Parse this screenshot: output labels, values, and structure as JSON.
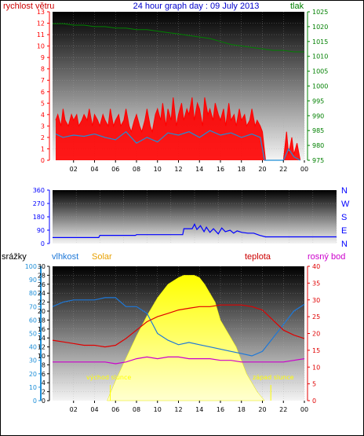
{
  "colors": {
    "wind": "#ff0000",
    "gust_bg": "#ff0000",
    "wind_avg": "#1e8fd8",
    "pressure": "#008000",
    "direction": "#0000ff",
    "humidity": "#1e78d8",
    "temperature": "#e00000",
    "dewpoint": "#cc00cc",
    "solar": "#ffff00",
    "rain": "#1e8fd8",
    "header_blue": "#0000cc",
    "solar_label": "#e8a000",
    "temp_label": "#cc0000",
    "dew_label": "#cc00cc",
    "sun_text": "#ffff00"
  },
  "header": {
    "left_label": "rychlost větru",
    "title": "24 hour graph day : 09 July 2013",
    "right_label": "tlak"
  },
  "bottom_header": {
    "rain_label": "srážky",
    "humidity_label": "vlhkost",
    "solar_label": "Solar",
    "temp_label": "teplota",
    "dew_label": "rosný bod"
  },
  "sun_labels": {
    "sunrise": "východ slunce",
    "sunset": "západ slunce"
  },
  "chart_data": [
    {
      "type": "line",
      "title": "24 hour graph day : 09 July 2013",
      "x_ticks": [
        "02",
        "04",
        "06",
        "08",
        "10",
        "12",
        "14",
        "16",
        "18",
        "20",
        "22",
        "00"
      ],
      "x_range_hours": [
        0,
        24
      ],
      "y_left_label": "rychlost větru",
      "y_left_ticks": [
        "0",
        "1",
        "2",
        "3",
        "4",
        "5",
        "6",
        "7",
        "8",
        "9",
        "10",
        "11",
        "12",
        "13"
      ],
      "y_left_range": [
        0,
        13
      ],
      "y_right_label": "tlak",
      "y_right_ticks": [
        "975",
        "980",
        "985",
        "990",
        "995",
        "1000",
        "1005",
        "1010",
        "1015",
        "1020",
        "1025"
      ],
      "y_right_range": [
        975,
        1025
      ],
      "series": [
        {
          "role": "gust",
          "x": [
            0.3,
            0.5,
            0.8,
            1.0,
            1.2,
            1.5,
            1.8,
            2.0,
            2.3,
            2.5,
            2.8,
            3.0,
            3.3,
            3.5,
            3.8,
            4.0,
            4.3,
            4.5,
            4.8,
            5.0,
            5.3,
            5.5,
            5.8,
            6.0,
            6.3,
            6.5,
            6.8,
            7.0,
            7.3,
            7.5,
            7.8,
            8.0,
            8.3,
            8.5,
            8.8,
            9.0,
            9.3,
            9.5,
            9.8,
            10.0,
            10.3,
            10.5,
            10.8,
            11.0,
            11.3,
            11.5,
            11.8,
            12.0,
            12.3,
            12.5,
            12.8,
            13.0,
            13.3,
            13.5,
            13.8,
            14.0,
            14.3,
            14.5,
            14.8,
            15.0,
            15.3,
            15.5,
            15.8,
            16.0,
            16.3,
            16.5,
            16.8,
            17.0,
            17.3,
            17.5,
            17.8,
            18.0,
            18.3,
            18.5,
            18.8,
            19.0,
            19.3,
            19.5,
            19.8,
            20.0,
            20.3,
            22.0,
            22.3,
            22.5,
            22.8,
            23.0,
            23.3,
            23.6
          ],
          "y": [
            3.5,
            4.0,
            3.0,
            4.5,
            3.5,
            3.0,
            4.0,
            3.5,
            4.0,
            3.0,
            3.5,
            4.0,
            3.5,
            4.5,
            3.0,
            4.0,
            3.5,
            3.0,
            4.0,
            3.5,
            3.0,
            4.5,
            3.0,
            3.5,
            4.0,
            3.0,
            3.5,
            4.5,
            3.0,
            2.5,
            3.5,
            4.0,
            3.0,
            2.5,
            3.5,
            4.5,
            3.0,
            2.5,
            4.0,
            4.5,
            3.5,
            5.0,
            3.0,
            4.5,
            3.5,
            5.5,
            3.0,
            4.0,
            5.0,
            3.5,
            4.5,
            4.0,
            5.5,
            3.5,
            5.0,
            4.5,
            3.0,
            5.5,
            4.0,
            4.5,
            3.5,
            5.0,
            4.0,
            3.5,
            4.5,
            3.0,
            5.0,
            3.5,
            4.0,
            3.0,
            4.5,
            3.5,
            4.0,
            3.0,
            3.5,
            4.5,
            3.0,
            3.5,
            3.0,
            2.5,
            0.0,
            0.0,
            2.5,
            0.5,
            2.0,
            0.5,
            1.5,
            0.0
          ]
        },
        {
          "role": "average",
          "x": [
            0.3,
            1.0,
            2.0,
            3.0,
            4.0,
            5.0,
            6.0,
            7.0,
            8.0,
            9.0,
            10.0,
            11.0,
            12.0,
            13.0,
            14.0,
            15.0,
            16.0,
            17.0,
            18.0,
            19.0,
            19.8,
            20.2,
            22.0,
            22.5,
            23.0,
            23.6
          ],
          "y": [
            2.3,
            2.0,
            2.2,
            2.1,
            2.3,
            2.0,
            1.8,
            2.5,
            1.5,
            2.0,
            1.6,
            2.4,
            2.2,
            2.5,
            2.0,
            2.6,
            2.2,
            2.4,
            2.0,
            2.3,
            2.0,
            0.0,
            0.0,
            1.0,
            0.3,
            0.0
          ]
        },
        {
          "role": "pressure",
          "axis": "right",
          "x": [
            0,
            1,
            2,
            3,
            4,
            5,
            6,
            7,
            8,
            9,
            10,
            11,
            12,
            13,
            14,
            15,
            16,
            17,
            18,
            19,
            20,
            21,
            22,
            23,
            24
          ],
          "y": [
            1021,
            1021,
            1020.5,
            1020.5,
            1020,
            1020,
            1019.5,
            1019.5,
            1019,
            1019,
            1018.5,
            1018,
            1017.5,
            1017,
            1016.5,
            1016,
            1015,
            1014,
            1013.5,
            1013,
            1012.5,
            1012,
            1012,
            1011.5,
            1011.5
          ]
        }
      ]
    },
    {
      "type": "line",
      "x_range_hours": [
        0,
        24
      ],
      "y_left_ticks": [
        "0",
        "90",
        "180",
        "270",
        "360"
      ],
      "y_left_range": [
        0,
        360
      ],
      "y_right_ticks": [
        "N",
        "E",
        "S",
        "W",
        "N"
      ],
      "series": [
        {
          "role": "direction",
          "x": [
            0,
            2,
            3,
            3.9,
            4.0,
            7.0,
            7.1,
            11.0,
            11.1,
            11.8,
            12.0,
            12.2,
            12.5,
            12.8,
            13.0,
            13.3,
            13.6,
            14.0,
            14.3,
            14.6,
            15.0,
            15.3,
            15.6,
            16.0,
            16.5,
            17.0,
            17.5,
            18.0,
            18.5,
            24
          ],
          "y": [
            40,
            40,
            40,
            40,
            55,
            55,
            60,
            60,
            100,
            100,
            130,
            95,
            120,
            80,
            110,
            75,
            100,
            65,
            105,
            80,
            90,
            70,
            85,
            75,
            70,
            70,
            55,
            45,
            45,
            45
          ]
        }
      ]
    },
    {
      "type": "area",
      "x_ticks": [
        "02",
        "04",
        "06",
        "08",
        "10",
        "12",
        "14",
        "16",
        "18",
        "20",
        "22",
        "00"
      ],
      "x_range_hours": [
        0,
        24
      ],
      "y_rain_ticks": [
        "0",
        "10",
        "20",
        "30",
        "40",
        "50",
        "60",
        "70",
        "80",
        "90",
        "100"
      ],
      "y_rain_range": [
        0,
        100
      ],
      "y_humidity_ticks": [
        "0",
        "2",
        "4",
        "6",
        "8",
        "10",
        "12",
        "14",
        "16",
        "18",
        "20",
        "22",
        "24",
        "26",
        "28",
        "30"
      ],
      "y_humidity_range": [
        0,
        30
      ],
      "y_right_ticks": [
        "0",
        "5",
        "10",
        "15",
        "20",
        "25",
        "30",
        "35",
        "40"
      ],
      "y_right_range": [
        0,
        40
      ],
      "series": [
        {
          "role": "solar",
          "axis": "humidity",
          "x": [
            5.2,
            6.0,
            7.0,
            8.0,
            9.0,
            10.0,
            11.0,
            12.0,
            12.5,
            13.0,
            13.5,
            14.0,
            14.5,
            15.0,
            15.5,
            16.0,
            16.5,
            17.0,
            17.5,
            18.0,
            18.5,
            19.0,
            19.5,
            20.2
          ],
          "y": [
            0,
            4.5,
            9.5,
            14.5,
            19,
            23,
            26,
            27.5,
            28,
            28,
            28,
            27.5,
            26,
            24,
            22,
            18,
            16,
            14,
            12,
            9,
            6,
            4,
            2,
            0
          ]
        },
        {
          "role": "humidity",
          "axis": "humidity",
          "x": [
            0,
            1,
            2,
            3,
            4,
            5,
            6,
            7,
            8,
            9,
            10,
            11,
            12,
            13,
            14,
            15,
            16,
            17,
            18,
            19,
            20,
            21,
            22,
            23,
            24
          ],
          "y": [
            21,
            22,
            22.5,
            22.5,
            22.5,
            23,
            23,
            21,
            21,
            19.5,
            15,
            13.5,
            12.5,
            13,
            12.5,
            12,
            11.5,
            11,
            10.5,
            10,
            11,
            14,
            17,
            20,
            21.5
          ]
        },
        {
          "role": "temperature",
          "axis": "right",
          "x": [
            0,
            1,
            2,
            3,
            4,
            5,
            6,
            7,
            8,
            9,
            10,
            11,
            12,
            13,
            14,
            15,
            16,
            17,
            18,
            19,
            20,
            21,
            22,
            23,
            24
          ],
          "y": [
            18,
            17.5,
            17,
            16.5,
            16.5,
            16,
            16.5,
            18.5,
            21,
            23.5,
            25,
            26,
            27,
            27.5,
            28,
            28,
            28.5,
            28.5,
            28.5,
            28,
            27,
            24,
            21,
            19.5,
            18.5
          ]
        },
        {
          "role": "dewpoint",
          "axis": "right",
          "x": [
            0,
            1,
            2,
            3,
            4,
            5,
            6,
            7,
            8,
            9,
            10,
            11,
            12,
            13,
            14,
            15,
            16,
            17,
            18,
            19,
            20,
            21,
            22,
            23,
            24
          ],
          "y": [
            11.5,
            11.5,
            11.5,
            11.5,
            11.5,
            11.5,
            11,
            11.5,
            12.5,
            13,
            12.5,
            13,
            13,
            12.5,
            12.5,
            12.5,
            12,
            12,
            11.5,
            11.5,
            11.5,
            11.5,
            11.5,
            12,
            12.5
          ]
        }
      ]
    }
  ]
}
